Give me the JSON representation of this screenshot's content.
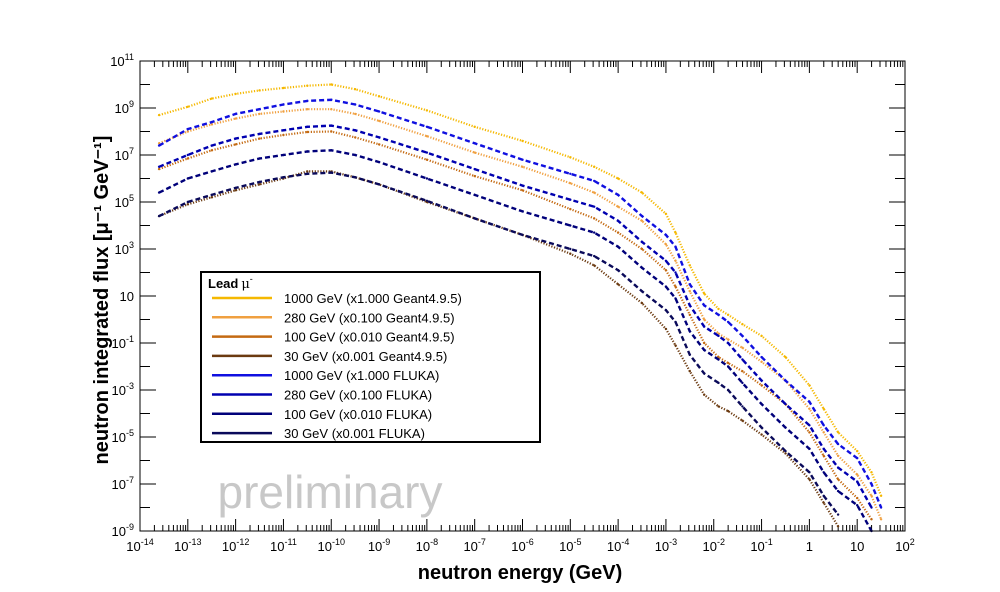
{
  "chart_data": {
    "type": "line",
    "xscale": "log",
    "yscale": "log",
    "xlim_exp": [
      -14,
      2
    ],
    "ylim_exp": [
      -9,
      11
    ],
    "xlabel": "neutron energy (GeV)",
    "ylabel": "neutron integrated flux [μ⁻¹ GeV⁻¹]",
    "watermark": "preliminary",
    "x_tick_labels": [
      {
        "exp": -14,
        "base": "10",
        "sup": "-14"
      },
      {
        "exp": -13,
        "base": "10",
        "sup": "-13"
      },
      {
        "exp": -12,
        "base": "10",
        "sup": "-12"
      },
      {
        "exp": -11,
        "base": "10",
        "sup": "-11"
      },
      {
        "exp": -10,
        "base": "10",
        "sup": "-10"
      },
      {
        "exp": -9,
        "base": "10",
        "sup": "-9"
      },
      {
        "exp": -8,
        "base": "10",
        "sup": "-8"
      },
      {
        "exp": -7,
        "base": "10",
        "sup": "-7"
      },
      {
        "exp": -6,
        "base": "10",
        "sup": "-6"
      },
      {
        "exp": -5,
        "base": "10",
        "sup": "-5"
      },
      {
        "exp": -4,
        "base": "10",
        "sup": "-4"
      },
      {
        "exp": -3,
        "base": "10",
        "sup": "-3"
      },
      {
        "exp": -2,
        "base": "10",
        "sup": "-2"
      },
      {
        "exp": -1,
        "base": "10",
        "sup": "-1"
      },
      {
        "exp": 0,
        "base": "1",
        "sup": ""
      },
      {
        "exp": 1,
        "base": "10",
        "sup": ""
      },
      {
        "exp": 2,
        "base": "10",
        "sup": "2"
      }
    ],
    "y_tick_labels": [
      {
        "exp": 11,
        "base": "10",
        "sup": "11"
      },
      {
        "exp": 9,
        "base": "10",
        "sup": "9"
      },
      {
        "exp": 7,
        "base": "10",
        "sup": "7"
      },
      {
        "exp": 5,
        "base": "10",
        "sup": "5"
      },
      {
        "exp": 3,
        "base": "10",
        "sup": "3"
      },
      {
        "exp": 1,
        "base": "10",
        "sup": ""
      },
      {
        "exp": -1,
        "base": "10",
        "sup": "-1"
      },
      {
        "exp": -3,
        "base": "10",
        "sup": "-3"
      },
      {
        "exp": -5,
        "base": "10",
        "sup": "-5"
      },
      {
        "exp": -7,
        "base": "10",
        "sup": "-7"
      },
      {
        "exp": -9,
        "base": "10",
        "sup": "-9"
      }
    ],
    "legend": {
      "title_main": "Lead",
      "title_symbol": "μ",
      "title_sup": "-",
      "position": "center-left"
    },
    "series": [
      {
        "name": "1000 GeV (x1.000 Geant4.9.5)",
        "color": "#f5b800",
        "style": "dotted",
        "points": [
          [
            -13.6,
            8.7
          ],
          [
            -13,
            9.05
          ],
          [
            -12.5,
            9.4
          ],
          [
            -12,
            9.6
          ],
          [
            -11.5,
            9.75
          ],
          [
            -11,
            9.85
          ],
          [
            -10.5,
            9.95
          ],
          [
            -10,
            10
          ],
          [
            -9.5,
            9.8
          ],
          [
            -9,
            9.5
          ],
          [
            -8,
            8.9
          ],
          [
            -7,
            8.2
          ],
          [
            -6,
            7.6
          ],
          [
            -5,
            6.9
          ],
          [
            -4.5,
            6.5
          ],
          [
            -4,
            6
          ],
          [
            -3.5,
            5.4
          ],
          [
            -3,
            4.5
          ],
          [
            -2.8,
            3.7
          ],
          [
            -2.5,
            2.3
          ],
          [
            -2.2,
            1.1
          ],
          [
            -1.9,
            0.45
          ],
          [
            -1.7,
            0.2
          ],
          [
            -1.4,
            -0.2
          ],
          [
            -1,
            -0.7
          ],
          [
            -0.5,
            -1.6
          ],
          [
            0,
            -2.8
          ],
          [
            0.3,
            -3.8
          ],
          [
            0.6,
            -4.8
          ],
          [
            1,
            -5.6
          ],
          [
            1.3,
            -6.5
          ],
          [
            1.5,
            -7.5
          ]
        ]
      },
      {
        "name": "280 GeV (x0.100 Geant4.9.5)",
        "color": "#f0a040",
        "style": "dotted",
        "points": [
          [
            -13.6,
            7.5
          ],
          [
            -13,
            8
          ],
          [
            -12.5,
            8.3
          ],
          [
            -12,
            8.55
          ],
          [
            -11.5,
            8.75
          ],
          [
            -11,
            8.85
          ],
          [
            -10.5,
            8.95
          ],
          [
            -10,
            8.95
          ],
          [
            -9.5,
            8.75
          ],
          [
            -9,
            8.45
          ],
          [
            -8,
            7.8
          ],
          [
            -7,
            7.1
          ],
          [
            -6,
            6.5
          ],
          [
            -5,
            5.8
          ],
          [
            -4.5,
            5.4
          ],
          [
            -4,
            4.8
          ],
          [
            -3.5,
            4.2
          ],
          [
            -3,
            3.2
          ],
          [
            -2.8,
            2.5
          ],
          [
            -2.5,
            1.2
          ],
          [
            -2.2,
            0
          ],
          [
            -1.9,
            -0.6
          ],
          [
            -1.7,
            -0.85
          ],
          [
            -1.4,
            -1.2
          ],
          [
            -1,
            -1.8
          ],
          [
            -0.5,
            -2.6
          ],
          [
            0,
            -3.8
          ],
          [
            0.3,
            -4.8
          ],
          [
            0.6,
            -5.8
          ],
          [
            1,
            -6.6
          ],
          [
            1.3,
            -7.5
          ],
          [
            1.5,
            -8.5
          ]
        ]
      },
      {
        "name": "100 GeV (x0.010 Geant4.9.5)",
        "color": "#c46a12",
        "style": "dotted",
        "points": [
          [
            -13.6,
            6.4
          ],
          [
            -13,
            6.85
          ],
          [
            -12.5,
            7.2
          ],
          [
            -12,
            7.45
          ],
          [
            -11.5,
            7.7
          ],
          [
            -11,
            7.85
          ],
          [
            -10.5,
            7.98
          ],
          [
            -10,
            8
          ],
          [
            -9.5,
            7.75
          ],
          [
            -9,
            7.45
          ],
          [
            -8,
            6.8
          ],
          [
            -7,
            6.1
          ],
          [
            -6,
            5.5
          ],
          [
            -5,
            4.7
          ],
          [
            -4.5,
            4.3
          ],
          [
            -4,
            3.7
          ],
          [
            -3.5,
            3
          ],
          [
            -3,
            2.1
          ],
          [
            -2.8,
            1.4
          ],
          [
            -2.5,
            0.2
          ],
          [
            -2.2,
            -1
          ],
          [
            -1.9,
            -1.6
          ],
          [
            -1.7,
            -1.85
          ],
          [
            -1.4,
            -2.2
          ],
          [
            -1,
            -2.8
          ],
          [
            -0.5,
            -3.6
          ],
          [
            0,
            -4.8
          ],
          [
            0.3,
            -5.8
          ],
          [
            0.6,
            -6.8
          ],
          [
            1,
            -7.6
          ],
          [
            1.3,
            -8.5
          ]
        ]
      },
      {
        "name": "30 GeV (x0.001 Geant4.9.5)",
        "color": "#6b3a10",
        "style": "dotted",
        "points": [
          [
            -13.6,
            4.4
          ],
          [
            -13,
            4.9
          ],
          [
            -12.5,
            5.2
          ],
          [
            -12,
            5.5
          ],
          [
            -11.5,
            5.75
          ],
          [
            -11,
            6
          ],
          [
            -10.5,
            6.3
          ],
          [
            -10,
            6.3
          ],
          [
            -9.5,
            6.05
          ],
          [
            -9,
            5.75
          ],
          [
            -8,
            5
          ],
          [
            -7,
            4.3
          ],
          [
            -6,
            3.6
          ],
          [
            -5,
            2.8
          ],
          [
            -4.5,
            2.3
          ],
          [
            -4,
            1.5
          ],
          [
            -3.5,
            0.7
          ],
          [
            -3,
            -0.4
          ],
          [
            -2.8,
            -1.1
          ],
          [
            -2.5,
            -2.2
          ],
          [
            -2.2,
            -3.2
          ],
          [
            -1.9,
            -3.7
          ],
          [
            -1.7,
            -3.9
          ],
          [
            -1.4,
            -4.3
          ],
          [
            -1,
            -4.9
          ],
          [
            -0.5,
            -5.7
          ],
          [
            0,
            -6.8
          ],
          [
            0.3,
            -7.8
          ],
          [
            0.6,
            -8.8
          ]
        ]
      },
      {
        "name": "1000 GeV (x1.000 FLUKA)",
        "color": "#1010e0",
        "style": "dashed",
        "points": [
          [
            -13.6,
            7.4
          ],
          [
            -13,
            8.1
          ],
          [
            -12.5,
            8.4
          ],
          [
            -12,
            8.75
          ],
          [
            -11.5,
            8.95
          ],
          [
            -11,
            9.15
          ],
          [
            -10.5,
            9.3
          ],
          [
            -10,
            9.35
          ],
          [
            -9.5,
            9.15
          ],
          [
            -9,
            8.85
          ],
          [
            -8,
            8.2
          ],
          [
            -7,
            7.5
          ],
          [
            -6,
            6.8
          ],
          [
            -5,
            6.2
          ],
          [
            -4.5,
            5.9
          ],
          [
            -4,
            5.3
          ],
          [
            -3.5,
            4.4
          ],
          [
            -3,
            3.6
          ],
          [
            -2.8,
            3.1
          ],
          [
            -2.5,
            1.5
          ],
          [
            -2.2,
            0.6
          ],
          [
            -1.9,
            0.2
          ],
          [
            -1.7,
            -0.1
          ],
          [
            -1.4,
            -0.7
          ],
          [
            -1,
            -1.6
          ],
          [
            -0.5,
            -2.6
          ],
          [
            0,
            -3.5
          ],
          [
            0.3,
            -4.5
          ],
          [
            0.6,
            -5.3
          ],
          [
            1,
            -5.9
          ],
          [
            1.3,
            -7
          ],
          [
            1.5,
            -8
          ]
        ]
      },
      {
        "name": "280 GeV (x0.100 FLUKA)",
        "color": "#0000b0",
        "style": "dashed",
        "points": [
          [
            -13.6,
            6.5
          ],
          [
            -13,
            7
          ],
          [
            -12.5,
            7.4
          ],
          [
            -12,
            7.7
          ],
          [
            -11.5,
            7.9
          ],
          [
            -11,
            8.05
          ],
          [
            -10.5,
            8.2
          ],
          [
            -10,
            8.25
          ],
          [
            -9.5,
            8.05
          ],
          [
            -9,
            7.75
          ],
          [
            -8,
            7.1
          ],
          [
            -7,
            6.4
          ],
          [
            -6,
            5.7
          ],
          [
            -5,
            5.1
          ],
          [
            -4.5,
            4.8
          ],
          [
            -4,
            4.2
          ],
          [
            -3.5,
            3.3
          ],
          [
            -3,
            2.5
          ],
          [
            -2.8,
            2
          ],
          [
            -2.5,
            0.6
          ],
          [
            -2.2,
            -0.3
          ],
          [
            -1.9,
            -0.7
          ],
          [
            -1.7,
            -1
          ],
          [
            -1.4,
            -1.7
          ],
          [
            -1,
            -2.6
          ],
          [
            -0.5,
            -3.6
          ],
          [
            0,
            -4.5
          ],
          [
            0.3,
            -5.5
          ],
          [
            0.6,
            -6.3
          ],
          [
            1,
            -6.9
          ],
          [
            1.3,
            -8
          ]
        ]
      },
      {
        "name": "100 GeV (x0.010 FLUKA)",
        "color": "#00007a",
        "style": "dashed",
        "points": [
          [
            -13.6,
            5.4
          ],
          [
            -13,
            6
          ],
          [
            -12.5,
            6.3
          ],
          [
            -12,
            6.6
          ],
          [
            -11.5,
            6.85
          ],
          [
            -11,
            7
          ],
          [
            -10.5,
            7.15
          ],
          [
            -10,
            7.2
          ],
          [
            -9.5,
            7
          ],
          [
            -9,
            6.7
          ],
          [
            -8,
            6
          ],
          [
            -7,
            5.3
          ],
          [
            -6,
            4.6
          ],
          [
            -5,
            4
          ],
          [
            -4.5,
            3.7
          ],
          [
            -4,
            3.1
          ],
          [
            -3.5,
            2.2
          ],
          [
            -3,
            1.4
          ],
          [
            -2.8,
            0.9
          ],
          [
            -2.5,
            -0.5
          ],
          [
            -2.2,
            -1.3
          ],
          [
            -1.9,
            -1.7
          ],
          [
            -1.7,
            -2
          ],
          [
            -1.4,
            -2.7
          ],
          [
            -1,
            -3.6
          ],
          [
            -0.5,
            -4.6
          ],
          [
            0,
            -5.5
          ],
          [
            0.3,
            -6.5
          ],
          [
            0.6,
            -7.3
          ],
          [
            1,
            -7.9
          ],
          [
            1.3,
            -9
          ]
        ]
      },
      {
        "name": "30 GeV (x0.001 FLUKA)",
        "color": "#0a0a5a",
        "style": "dashed",
        "points": [
          [
            -13.6,
            4.4
          ],
          [
            -13,
            5
          ],
          [
            -12.5,
            5.3
          ],
          [
            -12,
            5.6
          ],
          [
            -11.5,
            5.85
          ],
          [
            -11,
            6.05
          ],
          [
            -10.5,
            6.2
          ],
          [
            -10,
            6.25
          ],
          [
            -9.5,
            6.05
          ],
          [
            -9,
            5.75
          ],
          [
            -8,
            5.05
          ],
          [
            -7,
            4.3
          ],
          [
            -6,
            3.6
          ],
          [
            -5,
            3
          ],
          [
            -4.5,
            2.7
          ],
          [
            -4,
            2.1
          ],
          [
            -3.5,
            1.2
          ],
          [
            -3,
            0.4
          ],
          [
            -2.8,
            -0.1
          ],
          [
            -2.5,
            -1.5
          ],
          [
            -2.2,
            -2.3
          ],
          [
            -1.9,
            -2.7
          ],
          [
            -1.7,
            -3
          ],
          [
            -1.4,
            -3.7
          ],
          [
            -1,
            -4.6
          ],
          [
            -0.5,
            -5.6
          ],
          [
            0,
            -6.5
          ],
          [
            0.3,
            -7.5
          ],
          [
            0.6,
            -8.3
          ]
        ]
      }
    ]
  }
}
